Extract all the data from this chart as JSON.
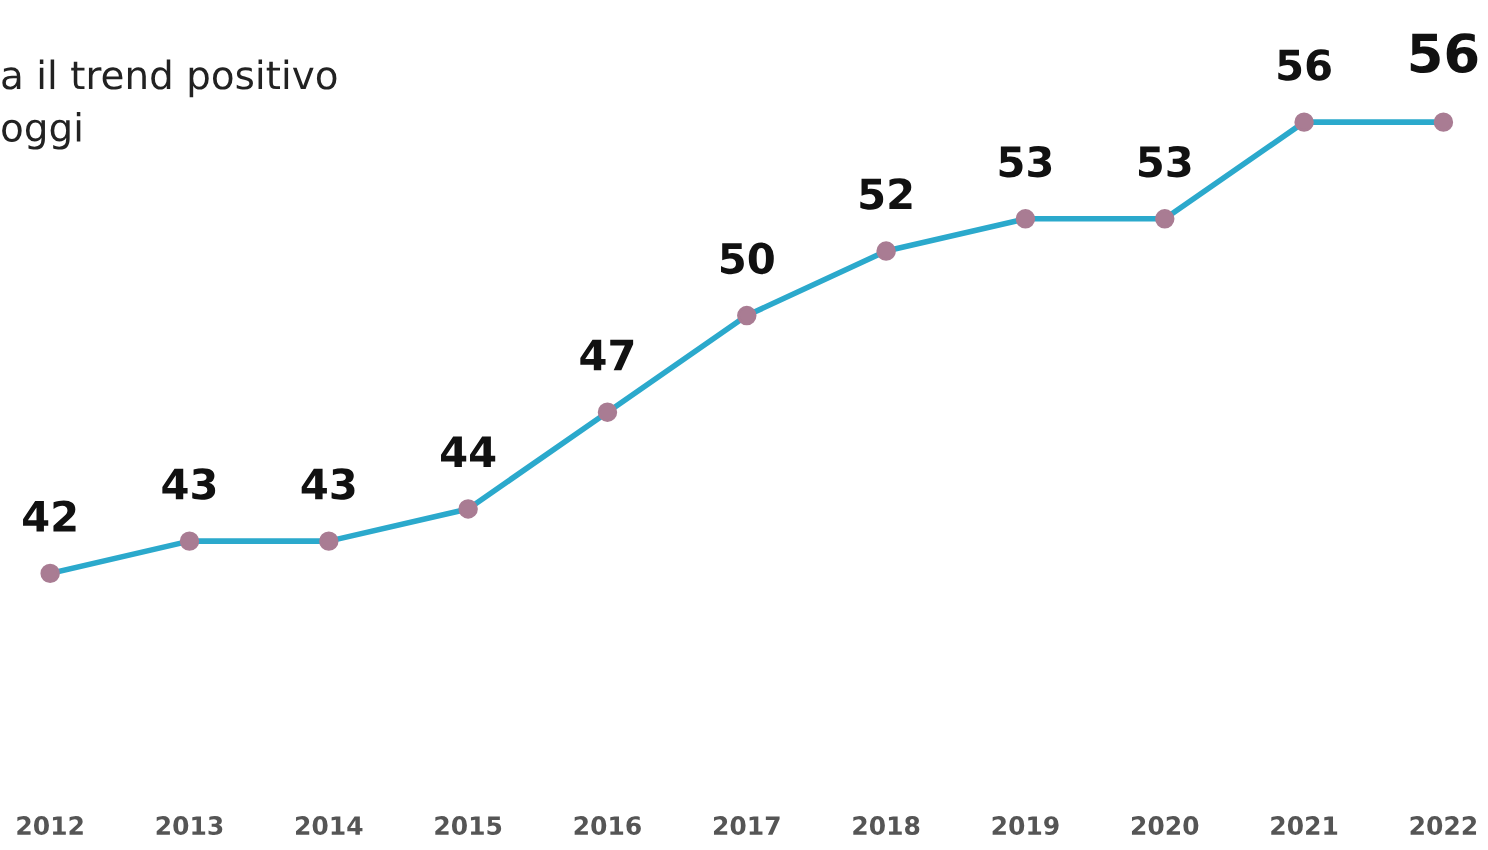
{
  "chart_data": {
    "type": "line",
    "title": "a il trend positivo\noggi",
    "categories": [
      "2012",
      "2013",
      "2014",
      "2015",
      "2016",
      "2017",
      "2018",
      "2019",
      "2020",
      "2021",
      "2022"
    ],
    "series": [
      {
        "color": "#2ba9cc",
        "values": [
          42,
          43,
          43,
          44,
          47,
          50,
          52,
          53,
          53,
          56,
          56
        ]
      }
    ],
    "marker": "circle",
    "data_labels": true,
    "grid": false,
    "legend": false
  }
}
